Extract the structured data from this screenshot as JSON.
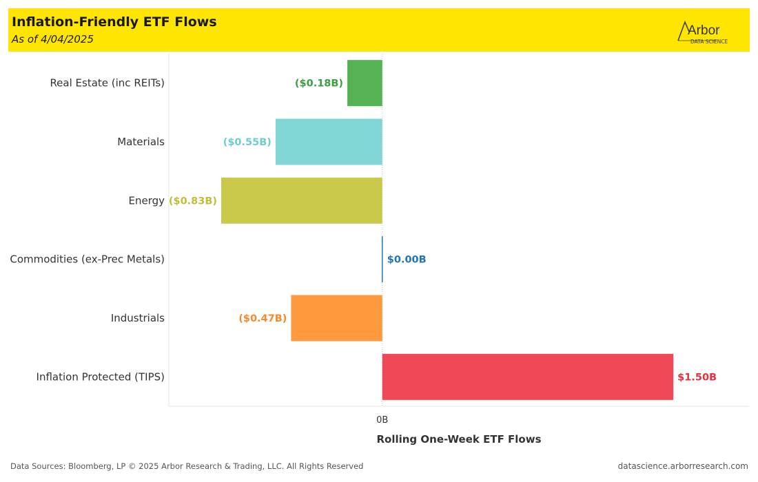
{
  "header": {
    "title": "Inflation-Friendly ETF Flows",
    "subtitle": "As of 4/04/2025",
    "logo_text": "Arbor",
    "logo_subtext": "DATA SCIENCE",
    "background_color": "#ffe600"
  },
  "chart_data": {
    "type": "bar",
    "orientation": "horizontal",
    "categories": [
      "Real Estate (inc REITs)",
      "Materials",
      "Energy",
      "Commodities (ex-Prec Metals)",
      "Industrials",
      "Inflation Protected (TIPS)"
    ],
    "values": [
      -0.18,
      -0.55,
      -0.83,
      0.0,
      -0.47,
      1.5
    ],
    "value_labels": [
      "($0.18B)",
      "($0.55B)",
      "($0.83B)",
      "$0.00B",
      "($0.47B)",
      "$1.50B"
    ],
    "colors": [
      "#55b353",
      "#82d6d6",
      "#cbc94b",
      "#2077b4",
      "#ff993e",
      "#ef4856"
    ],
    "label_colors": [
      "#3ca040",
      "#6ecdcd",
      "#c0bd3a",
      "#2077b4",
      "#f58a2c",
      "#e23341"
    ],
    "xlabel": "Rolling One-Week ETF Flows",
    "x_tick_labels": [
      "0B"
    ],
    "units": "$B",
    "xlim": [
      -1.1,
      1.89
    ],
    "grid": false
  },
  "footer": {
    "source": "Data Sources: Bloomberg, LP © 2025 Arbor Research & Trading, LLC. All Rights Reserved",
    "url": "datascience.arborresearch.com"
  }
}
